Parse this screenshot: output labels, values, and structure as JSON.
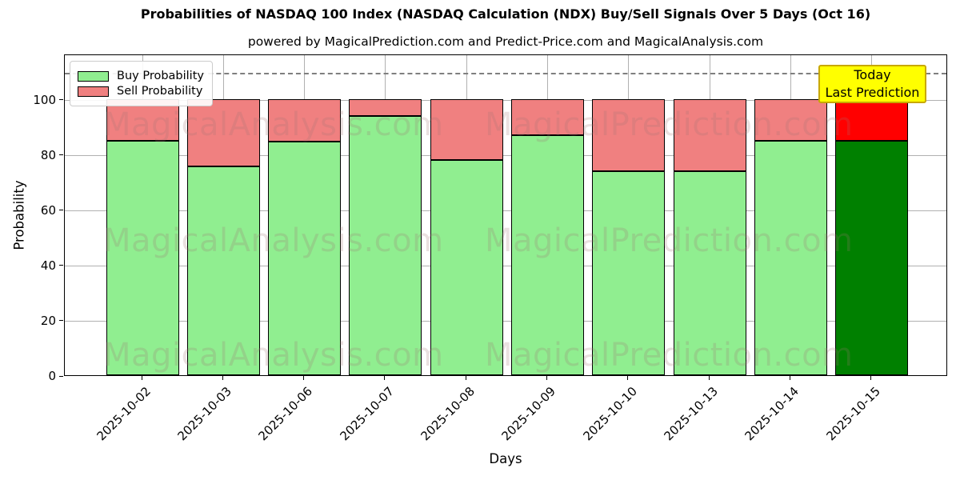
{
  "chart_data": {
    "type": "bar",
    "stacked": true,
    "title": "Probabilities of NASDAQ 100 Index (NASDAQ Calculation (NDX) Buy/Sell Signals Over 5 Days (Oct 16)",
    "subtitle": "powered by MagicalPrediction.com and Predict-Price.com and MagicalAnalysis.com",
    "xlabel": "Days",
    "ylabel": "Probability",
    "categories": [
      "2025-10-02",
      "2025-10-03",
      "2025-10-06",
      "2025-10-07",
      "2025-10-08",
      "2025-10-09",
      "2025-10-10",
      "2025-10-13",
      "2025-10-14",
      "2025-10-15"
    ],
    "series": [
      {
        "name": "Buy Probability",
        "color": "#90ee90",
        "today_color": "#008000",
        "values": [
          85,
          75.5,
          84.5,
          94,
          78,
          87,
          74,
          74,
          85,
          85
        ]
      },
      {
        "name": "Sell Probability",
        "color": "#f08080",
        "today_color": "#ff0000",
        "values": [
          15,
          24.5,
          15.5,
          6,
          22,
          13,
          26,
          26,
          15,
          15
        ]
      }
    ],
    "today_index": 9,
    "yticks": [
      0,
      20,
      40,
      60,
      80,
      100
    ],
    "ylim": [
      0,
      116.5
    ],
    "threshold_line_y": 110,
    "grid": true,
    "legend_position": "upper left",
    "bar_edge_color": "#000000",
    "grid_color": "#b0b0b0",
    "threshold_line_color": "#7f7f7f"
  },
  "annotation": {
    "line1": "Today",
    "line2": "Last Prediction",
    "bg_color": "#ffff00",
    "border_color": "#c8a800"
  },
  "watermarks": {
    "left_text": "MagicalAnalysis.com",
    "right_text": "MagicalPrediction.com",
    "color": "rgba(160,115,115,0.22)"
  }
}
